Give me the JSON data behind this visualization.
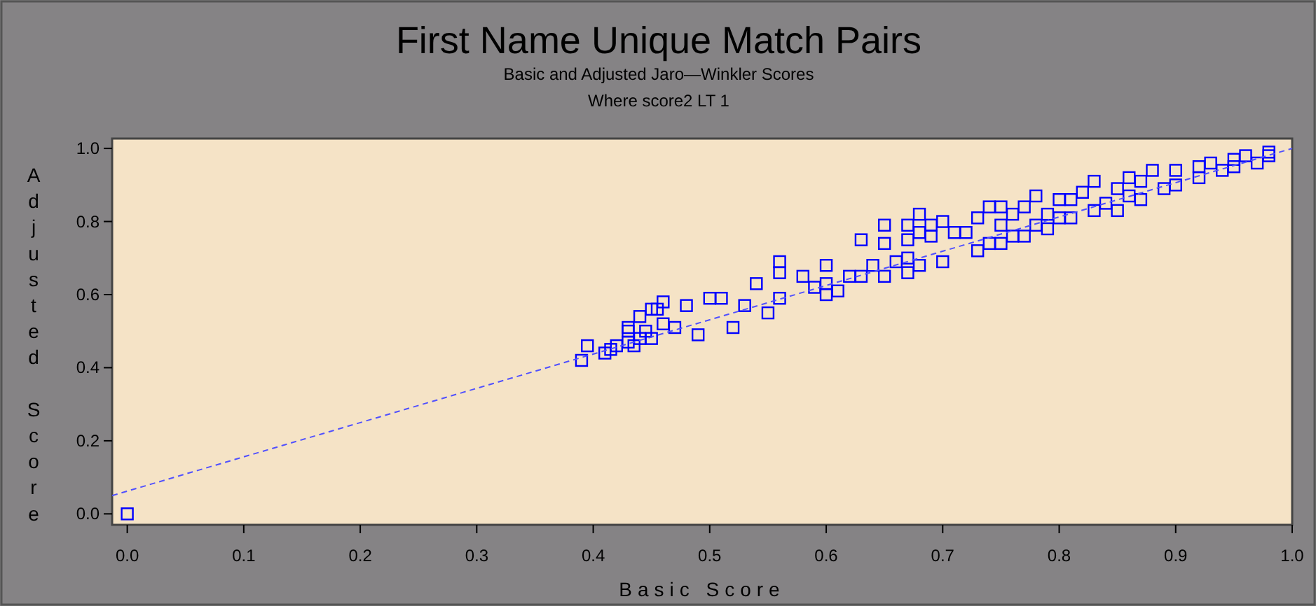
{
  "chart_data": {
    "type": "scatter",
    "title": "First Name Unique Match Pairs",
    "subtitle": "Basic and Adjusted Jaro—Winkler Scores\nWhere score2 LT 1",
    "xlabel": "Basic Score",
    "ylabel": "Adjusted Score",
    "xlim": [
      -0.013,
      1.0
    ],
    "ylim": [
      -0.03,
      1.027
    ],
    "xticks": [
      {
        "value": 0,
        "label": "0.0"
      },
      0.1,
      0.2,
      0.3,
      0.4,
      0.5,
      0.6,
      0.7,
      0.8,
      0.9,
      {
        "value": 1,
        "label": "1.0"
      }
    ],
    "yticks": [
      {
        "value": 0,
        "label": "0.0"
      },
      0.2,
      0.4,
      0.6,
      0.8,
      {
        "value": 1,
        "label": "1.0"
      }
    ],
    "grid": false,
    "series": [
      {
        "type": "scatter",
        "color": "#0000ff",
        "marker": "square",
        "x": [
          0,
          0.39,
          0.395,
          0.41,
          0.415,
          0.42,
          0.43,
          0.43,
          0.43,
          0.435,
          0.44,
          0.44,
          0.445,
          0.45,
          0.455,
          0.46,
          0.45,
          0.46,
          0.47,
          0.48,
          0.5,
          0.51,
          0.49,
          0.52,
          0.53,
          0.54,
          0.55,
          0.56,
          0.56,
          0.56,
          0.58,
          0.59,
          0.6,
          0.6,
          0.6,
          0.61,
          0.62,
          0.63,
          0.63,
          0.65,
          0.65,
          0.64,
          0.65,
          0.66,
          0.67,
          0.67,
          0.67,
          0.67,
          0.68,
          0.68,
          0.69,
          0.69,
          0.68,
          0.7,
          0.7,
          0.71,
          0.72,
          0.73,
          0.74,
          0.73,
          0.74,
          0.75,
          0.75,
          0.75,
          0.76,
          0.76,
          0.77,
          0.77,
          0.78,
          0.78,
          0.79,
          0.79,
          0.8,
          0.8,
          0.81,
          0.81,
          0.82,
          0.83,
          0.83,
          0.84,
          0.85,
          0.85,
          0.86,
          0.86,
          0.87,
          0.87,
          0.88,
          0.89,
          0.9,
          0.9,
          0.92,
          0.92,
          0.93,
          0.94,
          0.95,
          0.95,
          0.96,
          0.97,
          0.98,
          0.98
        ],
        "values": [
          0,
          0.42,
          0.46,
          0.44,
          0.45,
          0.46,
          0.47,
          0.5,
          0.51,
          0.46,
          0.48,
          0.54,
          0.5,
          0.48,
          0.56,
          0.52,
          0.56,
          0.58,
          0.51,
          0.57,
          0.59,
          0.59,
          0.49,
          0.51,
          0.57,
          0.63,
          0.55,
          0.69,
          0.66,
          0.59,
          0.65,
          0.62,
          0.68,
          0.63,
          0.6,
          0.61,
          0.65,
          0.65,
          0.75,
          0.79,
          0.74,
          0.68,
          0.65,
          0.69,
          0.79,
          0.75,
          0.7,
          0.66,
          0.77,
          0.82,
          0.79,
          0.76,
          0.68,
          0.69,
          0.8,
          0.77,
          0.77,
          0.72,
          0.84,
          0.81,
          0.74,
          0.74,
          0.84,
          0.79,
          0.82,
          0.76,
          0.76,
          0.84,
          0.87,
          0.79,
          0.82,
          0.78,
          0.86,
          0.81,
          0.86,
          0.81,
          0.88,
          0.83,
          0.91,
          0.85,
          0.89,
          0.83,
          0.92,
          0.87,
          0.91,
          0.86,
          0.94,
          0.89,
          0.94,
          0.9,
          0.95,
          0.92,
          0.96,
          0.94,
          0.97,
          0.95,
          0.98,
          0.96,
          0.99,
          0.98
        ]
      },
      {
        "type": "line",
        "color": "#5050ff",
        "line_style": "dashed",
        "marker": "none",
        "x": [
          -0.013,
          1.0
        ],
        "values": [
          0.05,
          1.0
        ]
      }
    ]
  }
}
